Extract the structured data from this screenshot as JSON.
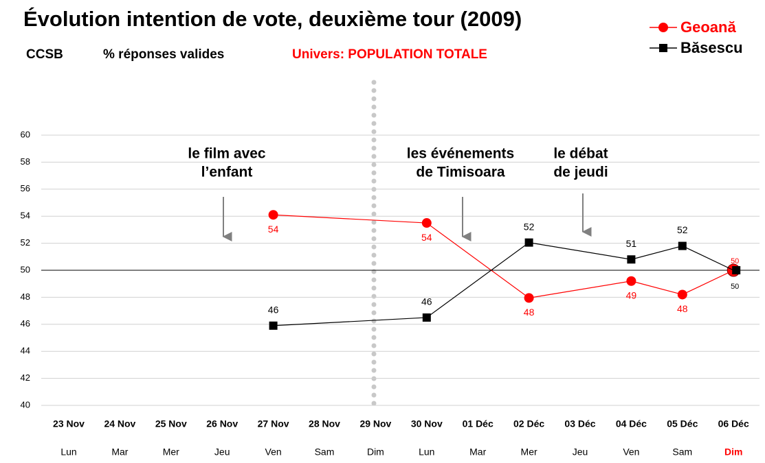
{
  "chart_data": {
    "type": "line",
    "title": "Évolution intention de vote, deuxième tour (2009)",
    "subtitle": [
      "CCSB",
      "% réponses valides",
      "Univers: POPULATION TOTALE"
    ],
    "categories": [
      "23 Nov",
      "24 Nov",
      "25 Nov",
      "26 Nov",
      "27 Nov",
      "28 Nov",
      "29 Nov",
      "30 Nov",
      "01 Déc",
      "02 Déc",
      "03 Déc",
      "04 Déc",
      "05 Déc",
      "06 Déc"
    ],
    "weekdays": [
      "Lun",
      "Mar",
      "Mer",
      "Jeu",
      "Ven",
      "Sam",
      "Dim",
      "Lun",
      "Mar",
      "Mer",
      "Jeu",
      "Ven",
      "Sam",
      "Dim"
    ],
    "series": [
      {
        "name": "Geoană",
        "color": "#ff0000",
        "marker": "circle",
        "values": [
          null,
          null,
          null,
          null,
          54.1,
          null,
          null,
          53.5,
          null,
          47.95,
          null,
          49.2,
          48.2,
          50
        ],
        "value_labels": [
          null,
          null,
          null,
          null,
          "54",
          null,
          null,
          "54",
          null,
          "48",
          null,
          "49",
          "48",
          "50"
        ]
      },
      {
        "name": "Băsescu",
        "color": "#000000",
        "marker": "square",
        "values": [
          null,
          null,
          null,
          null,
          45.9,
          null,
          null,
          46.5,
          null,
          52.05,
          null,
          50.8,
          51.8,
          50
        ],
        "value_labels": [
          null,
          null,
          null,
          null,
          "46",
          null,
          null,
          "46",
          null,
          "52",
          null,
          "51",
          "52",
          "50"
        ]
      }
    ],
    "annotations": [
      {
        "lines": [
          "le film avec",
          "l’enfant"
        ]
      },
      {
        "lines": [
          "les événements",
          "de Timisoara"
        ]
      },
      {
        "lines": [
          "le débat",
          "de jeudi"
        ]
      }
    ],
    "ylim": [
      40,
      60
    ],
    "yticks": [
      40,
      42,
      44,
      46,
      48,
      50,
      52,
      54,
      56,
      58,
      60
    ],
    "reference_line": 50,
    "grid": true,
    "legend": "top-right"
  }
}
